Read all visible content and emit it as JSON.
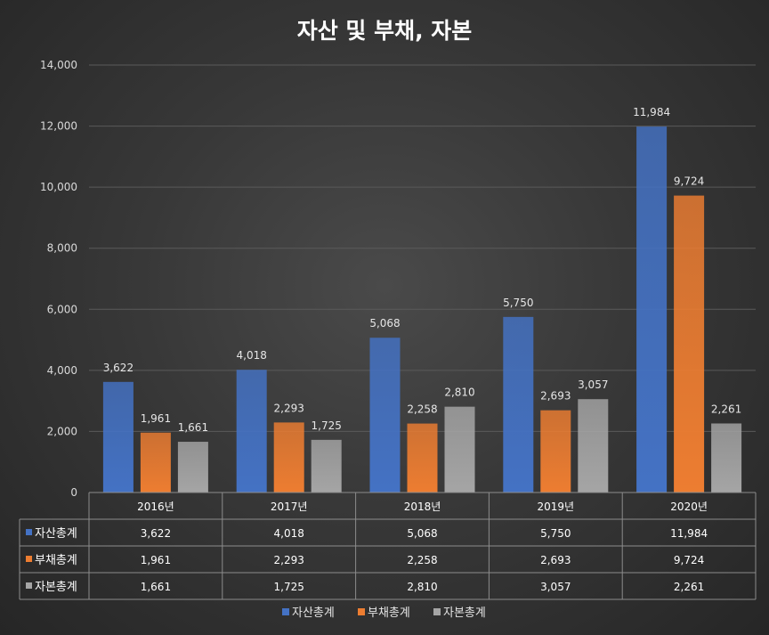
{
  "chart_data": {
    "type": "bar",
    "title": "자산 및 부채, 자본",
    "categories": [
      "2016년",
      "2017년",
      "2018년",
      "2019년",
      "2020년"
    ],
    "series": [
      {
        "name": "자산총계",
        "color": "#4472C4",
        "values": [
          3622,
          4018,
          5068,
          5750,
          11984
        ],
        "labels": [
          "3,622",
          "4,018",
          "5,068",
          "5,750",
          "11,984"
        ]
      },
      {
        "name": "부채총계",
        "color": "#ED7D31",
        "values": [
          1961,
          2293,
          2258,
          2693,
          9724
        ],
        "labels": [
          "1,961",
          "2,293",
          "2,258",
          "2,693",
          "9,724"
        ]
      },
      {
        "name": "자본총계",
        "color": "#A5A5A5",
        "values": [
          1661,
          1725,
          2810,
          3057,
          2261
        ],
        "labels": [
          "1,661",
          "1,725",
          "2,810",
          "3,057",
          "2,261"
        ]
      }
    ],
    "ylim": [
      0,
      14000
    ],
    "yticks": [
      0,
      2000,
      4000,
      6000,
      8000,
      10000,
      12000,
      14000
    ],
    "ytick_labels": [
      "0",
      "2,000",
      "4,000",
      "6,000",
      "8,000",
      "10,000",
      "12,000",
      "14,000"
    ],
    "grid": true,
    "data_table": true,
    "legend_position": "bottom"
  }
}
